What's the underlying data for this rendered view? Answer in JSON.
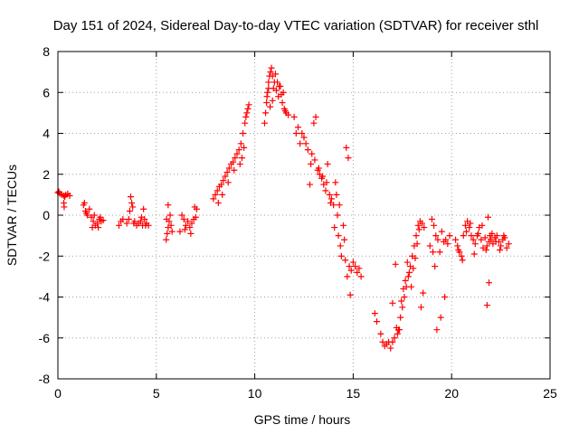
{
  "chart_data": {
    "type": "scatter",
    "title": "Day 151 of 2024, Sidereal Day-to-day VTEC variation (SDTVAR) for receiver sthl",
    "xlabel": "GPS time / hours",
    "ylabel": "SDTVAR / TECUs",
    "xlim": [
      0,
      25
    ],
    "ylim": [
      -8,
      8
    ],
    "xticks": [
      0,
      5,
      10,
      15,
      20,
      25
    ],
    "yticks": [
      -8,
      -6,
      -4,
      -2,
      0,
      2,
      4,
      6,
      8
    ],
    "xtick_labels": [
      "0",
      "5",
      "10",
      "15",
      "20",
      "25"
    ],
    "ytick_labels": [
      "-8",
      "-6",
      "-4",
      "-2",
      "0",
      "2",
      "4",
      "6",
      "8"
    ],
    "grid": true,
    "marker": "+",
    "color": "#ff0000",
    "series": [
      {
        "name": "SDTVAR",
        "x": [
          0.0,
          0.05,
          0.1,
          0.2,
          0.3,
          0.35,
          0.4,
          0.5,
          0.6,
          0.3,
          0.32,
          1.3,
          1.4,
          1.5,
          1.6,
          1.7,
          1.8,
          1.9,
          2.0,
          2.1,
          2.2,
          2.3,
          1.35,
          1.45,
          1.75,
          1.85,
          2.05,
          2.15,
          3.1,
          3.2,
          3.3,
          3.5,
          3.6,
          3.7,
          3.75,
          3.8,
          3.9,
          4.0,
          4.1,
          4.2,
          4.3,
          4.4,
          4.5,
          4.6,
          3.65,
          3.85,
          4.25,
          4.35,
          4.45,
          5.5,
          5.55,
          5.6,
          5.65,
          5.7,
          5.75,
          5.8,
          5.6,
          5.52,
          6.3,
          6.4,
          6.5,
          6.6,
          6.7,
          6.8,
          6.9,
          7.0,
          7.05,
          6.45,
          6.75,
          6.95,
          6.2,
          7.9,
          8.0,
          8.1,
          8.2,
          8.3,
          8.4,
          8.5,
          8.6,
          8.7,
          8.8,
          8.9,
          9.0,
          9.1,
          9.2,
          9.3,
          9.4,
          9.5,
          9.55,
          9.6,
          9.65,
          9.7,
          9.35,
          9.45,
          8.15,
          8.35,
          8.65,
          8.95,
          9.25,
          10.5,
          10.6,
          10.65,
          10.7,
          10.75,
          10.8,
          10.85,
          10.9,
          10.95,
          11.0,
          11.1,
          11.2,
          11.3,
          11.4,
          11.5,
          11.6,
          11.7,
          10.55,
          10.7,
          10.9,
          11.05,
          11.15,
          11.25,
          11.35,
          11.45,
          11.55,
          10.62,
          10.78,
          12.0,
          12.1,
          12.2,
          12.3,
          12.4,
          12.5,
          12.6,
          12.7,
          12.8,
          12.85,
          12.9,
          13.0,
          13.1,
          13.2,
          13.3,
          13.4,
          13.5,
          13.6,
          13.7,
          13.8,
          13.9,
          14.0,
          14.1,
          14.15,
          14.2,
          14.25,
          14.3,
          14.35,
          14.4,
          13.05,
          13.25,
          13.45,
          13.65,
          13.85,
          14.05,
          14.5,
          14.55,
          14.6,
          14.7,
          14.8,
          14.9,
          15.0,
          15.1,
          15.2,
          15.3,
          15.4,
          14.65,
          14.75,
          14.85,
          16.1,
          16.2,
          16.4,
          16.5,
          16.6,
          16.7,
          16.8,
          16.9,
          17.0,
          17.1,
          17.2,
          17.3,
          17.4,
          17.5,
          17.6,
          17.7,
          17.8,
          17.9,
          18.0,
          18.1,
          18.2,
          18.3,
          18.4,
          18.5,
          18.6,
          17.25,
          17.35,
          17.45,
          17.55,
          17.65,
          17.75,
          17.85,
          17.95,
          18.05,
          18.15,
          18.25,
          18.35,
          17.0,
          17.15,
          18.45,
          18.55,
          18.9,
          19.0,
          19.1,
          19.2,
          19.3,
          19.4,
          19.5,
          19.6,
          19.7,
          19.8,
          19.9,
          19.25,
          19.45,
          19.65,
          19.05,
          19.15,
          20.2,
          20.3,
          20.4,
          20.5,
          20.6,
          20.7,
          20.8,
          20.9,
          21.0,
          21.1,
          21.2,
          21.3,
          21.4,
          21.5,
          21.6,
          21.7,
          21.8,
          21.9,
          22.0,
          22.1,
          22.2,
          22.3,
          22.4,
          22.5,
          22.6,
          22.7,
          22.8,
          22.9,
          20.35,
          20.55,
          20.75,
          20.95,
          21.15,
          21.35,
          21.55,
          21.75,
          21.85,
          21.95,
          22.05,
          22.25,
          22.45,
          22.65,
          21.8,
          21.9
        ],
        "y": [
          1.1,
          1.15,
          1.05,
          1.0,
          0.95,
          0.9,
          1.0,
          1.05,
          0.95,
          0.6,
          0.4,
          0.5,
          0.2,
          0.0,
          0.3,
          -0.1,
          -0.3,
          -0.5,
          -0.4,
          -0.2,
          -0.3,
          -0.25,
          0.6,
          0.1,
          -0.6,
          0.0,
          -0.6,
          -0.1,
          -0.5,
          -0.3,
          -0.2,
          -0.4,
          -0.2,
          0.9,
          0.6,
          0.4,
          -0.3,
          -0.5,
          -0.4,
          -0.3,
          -0.5,
          -0.2,
          -0.4,
          -0.5,
          0.2,
          -0.4,
          -0.1,
          0.3,
          -0.5,
          -1.2,
          -0.9,
          -0.6,
          -0.3,
          0.0,
          -0.5,
          -0.8,
          0.5,
          -0.2,
          0.0,
          -0.2,
          -0.5,
          -0.3,
          -0.6,
          -0.4,
          -0.2,
          -0.1,
          0.3,
          -0.7,
          -0.9,
          0.4,
          -0.8,
          0.8,
          1.0,
          1.2,
          1.4,
          1.5,
          1.7,
          1.9,
          2.1,
          2.3,
          2.5,
          2.6,
          2.8,
          3.0,
          3.2,
          3.5,
          4.0,
          4.5,
          4.8,
          5.0,
          5.2,
          5.4,
          2.8,
          3.3,
          0.6,
          1.0,
          1.6,
          2.2,
          2.5,
          4.5,
          5.5,
          6.0,
          6.5,
          6.8,
          7.0,
          7.2,
          6.8,
          6.2,
          6.5,
          6.1,
          5.8,
          6.3,
          5.5,
          5.2,
          5.0,
          4.9,
          5.0,
          6.2,
          5.6,
          6.9,
          6.5,
          6.3,
          5.9,
          6.0,
          5.1,
          5.8,
          5.3,
          4.8,
          4.0,
          4.3,
          3.5,
          4.0,
          3.8,
          3.5,
          3.2,
          1.5,
          2.5,
          3.0,
          4.5,
          4.8,
          2.2,
          2.0,
          1.8,
          1.5,
          1.2,
          2.5,
          1.0,
          0.8,
          0.5,
          1.6,
          1.0,
          0.0,
          -1.0,
          0.5,
          -1.5,
          -2.0,
          2.7,
          2.3,
          1.9,
          1.6,
          0.6,
          -0.6,
          -0.5,
          -1.2,
          -2.2,
          -3.0,
          -2.5,
          -2.7,
          -2.3,
          -2.5,
          -2.8,
          -2.6,
          -3.0,
          3.3,
          2.8,
          -3.9,
          -4.8,
          -5.2,
          -5.8,
          -6.2,
          -6.4,
          -6.3,
          -6.2,
          -6.5,
          -6.2,
          -6.0,
          -5.5,
          -5.6,
          -5.0,
          -4.5,
          -4.0,
          -3.5,
          -3.0,
          -2.5,
          -2.0,
          -1.5,
          -1.0,
          -0.5,
          -0.3,
          -0.4,
          -0.6,
          -5.8,
          -5.6,
          -4.2,
          -3.6,
          -3.2,
          -2.3,
          -2.8,
          -3.5,
          -2.6,
          -2.1,
          -1.4,
          -0.7,
          -4.3,
          -2.4,
          -4.5,
          -3.8,
          -1.5,
          -0.2,
          -0.5,
          -1.0,
          -1.2,
          -1.8,
          -0.8,
          -1.3,
          -1.2,
          -1.4,
          -1.0,
          -5.6,
          -5.0,
          -4.0,
          -1.8,
          -2.5,
          -1.2,
          -1.5,
          -1.8,
          -2.0,
          -1.0,
          -0.5,
          -0.3,
          -0.6,
          -1.0,
          -1.2,
          -1.4,
          -1.0,
          -0.6,
          -1.2,
          -1.6,
          -1.1,
          -1.5,
          -1.3,
          -1.2,
          -1.4,
          -1.1,
          -1.0,
          -1.3,
          -1.5,
          -1.2,
          -1.1,
          -1.6,
          -1.4,
          -1.7,
          -2.2,
          -0.8,
          -0.4,
          -1.9,
          -0.9,
          -0.5,
          -1.7,
          -0.1,
          -1.0,
          -0.9,
          -1.3,
          -1.7,
          -1.0,
          -4.4,
          -3.3
        ]
      }
    ]
  }
}
